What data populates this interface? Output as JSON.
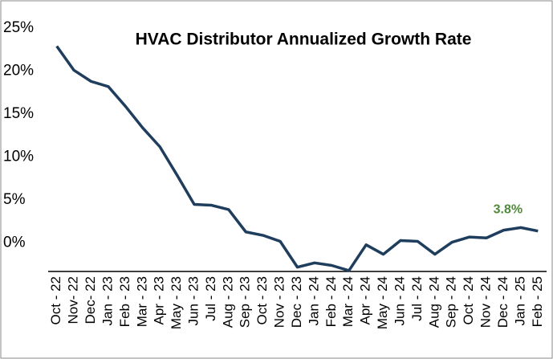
{
  "chart_data": {
    "type": "line",
    "title": "HVAC Distributor Annualized Growth Rate",
    "categories": [
      "Oct - 22",
      "Nov- 22",
      "Dec- 22",
      "Jan - 23",
      "Feb - 23",
      "Mar - 23",
      "Apr - 23",
      "May - 23",
      "Jun - 23",
      "Jul - 23",
      "Aug - 23",
      "Sep - 23",
      "Oct - 23",
      "Nov - 23",
      "Dec - 23",
      "Jan - 24",
      "Feb - 24",
      "Mar - 24",
      "Apr - 24",
      "May - 24",
      "Jun - 24",
      "Jul - 24",
      "Aug - 24",
      "Sep - 24",
      "Oct - 24",
      "Nov - 24",
      "Dec - 24",
      "Jan - 25",
      "Feb - 25"
    ],
    "values": [
      22.9,
      20.1,
      18.8,
      18.2,
      15.9,
      13.4,
      11.2,
      7.9,
      4.5,
      4.4,
      3.9,
      1.3,
      0.9,
      0.2,
      -2.8,
      -2.3,
      -2.6,
      -3.2,
      -0.2,
      -1.3,
      0.3,
      0.2,
      -1.3,
      0.1,
      0.7,
      0.6,
      1.5,
      1.8,
      1.4
    ],
    "color": "#1f3d5c",
    "ylim": [
      -3.3,
      25
    ],
    "yticks": [
      {
        "value": 0,
        "label": "0%"
      },
      {
        "value": 5,
        "label": "5%"
      },
      {
        "value": 10,
        "label": "10%"
      },
      {
        "value": 15,
        "label": "15%"
      },
      {
        "value": 20,
        "label": "20%"
      },
      {
        "value": 25,
        "label": "25%"
      }
    ],
    "annotation": "3.8%",
    "annotation_color": "#4e8a3a"
  }
}
